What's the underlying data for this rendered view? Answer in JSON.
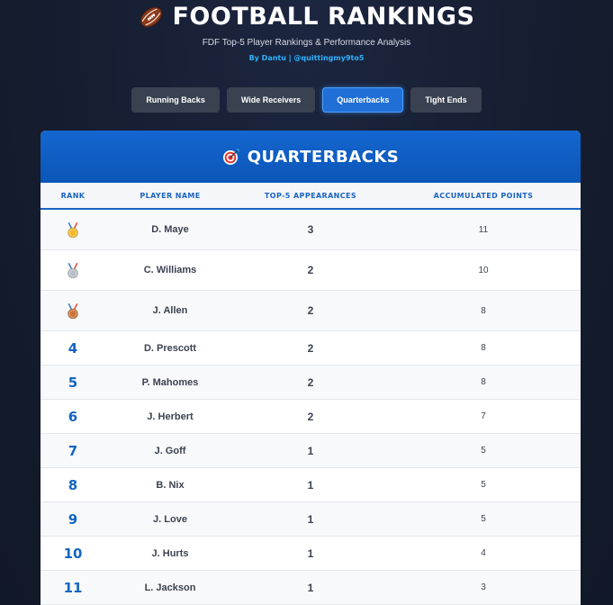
{
  "header": {
    "title": "FOOTBALL RANKINGS",
    "title_icon": "football-icon",
    "subtitle": "FDF Top-5 Player Rankings & Performance Analysis",
    "byline": "By Dantu | @quittingmy9to5"
  },
  "tabs": [
    {
      "label": "Running Backs",
      "active": false
    },
    {
      "label": "Wide Receivers",
      "active": false
    },
    {
      "label": "Quarterbacks",
      "active": true
    },
    {
      "label": "Tight Ends",
      "active": false
    }
  ],
  "card": {
    "title": "QUARTERBACKS",
    "title_icon": "target-icon"
  },
  "table": {
    "columns": [
      "RANK",
      "PLAYER NAME",
      "TOP-5 APPEARANCES",
      "ACCUMULATED POINTS"
    ],
    "rows": [
      {
        "rank": "1",
        "medal": "gold",
        "name": "D. Maye",
        "appearances": "3",
        "points": "11"
      },
      {
        "rank": "2",
        "medal": "silver",
        "name": "C. Williams",
        "appearances": "2",
        "points": "10"
      },
      {
        "rank": "3",
        "medal": "bronze",
        "name": "J. Allen",
        "appearances": "2",
        "points": "8"
      },
      {
        "rank": "4",
        "medal": "",
        "name": "D. Prescott",
        "appearances": "2",
        "points": "8"
      },
      {
        "rank": "5",
        "medal": "",
        "name": "P. Mahomes",
        "appearances": "2",
        "points": "8"
      },
      {
        "rank": "6",
        "medal": "",
        "name": "J. Herbert",
        "appearances": "2",
        "points": "7"
      },
      {
        "rank": "7",
        "medal": "",
        "name": "J. Goff",
        "appearances": "1",
        "points": "5"
      },
      {
        "rank": "8",
        "medal": "",
        "name": "B. Nix",
        "appearances": "1",
        "points": "5"
      },
      {
        "rank": "9",
        "medal": "",
        "name": "J. Love",
        "appearances": "1",
        "points": "5"
      },
      {
        "rank": "10",
        "medal": "",
        "name": "J. Hurts",
        "appearances": "1",
        "points": "4"
      },
      {
        "rank": "11",
        "medal": "",
        "name": "L. Jackson",
        "appearances": "1",
        "points": "3"
      }
    ]
  },
  "colors": {
    "background": "#141c2e",
    "accent": "#1f6fd6",
    "header_blue": "#0b56b8",
    "byline": "#2fb3ff",
    "gold": "#f2b92a",
    "silver": "#b9bec6",
    "bronze": "#c9743b"
  }
}
